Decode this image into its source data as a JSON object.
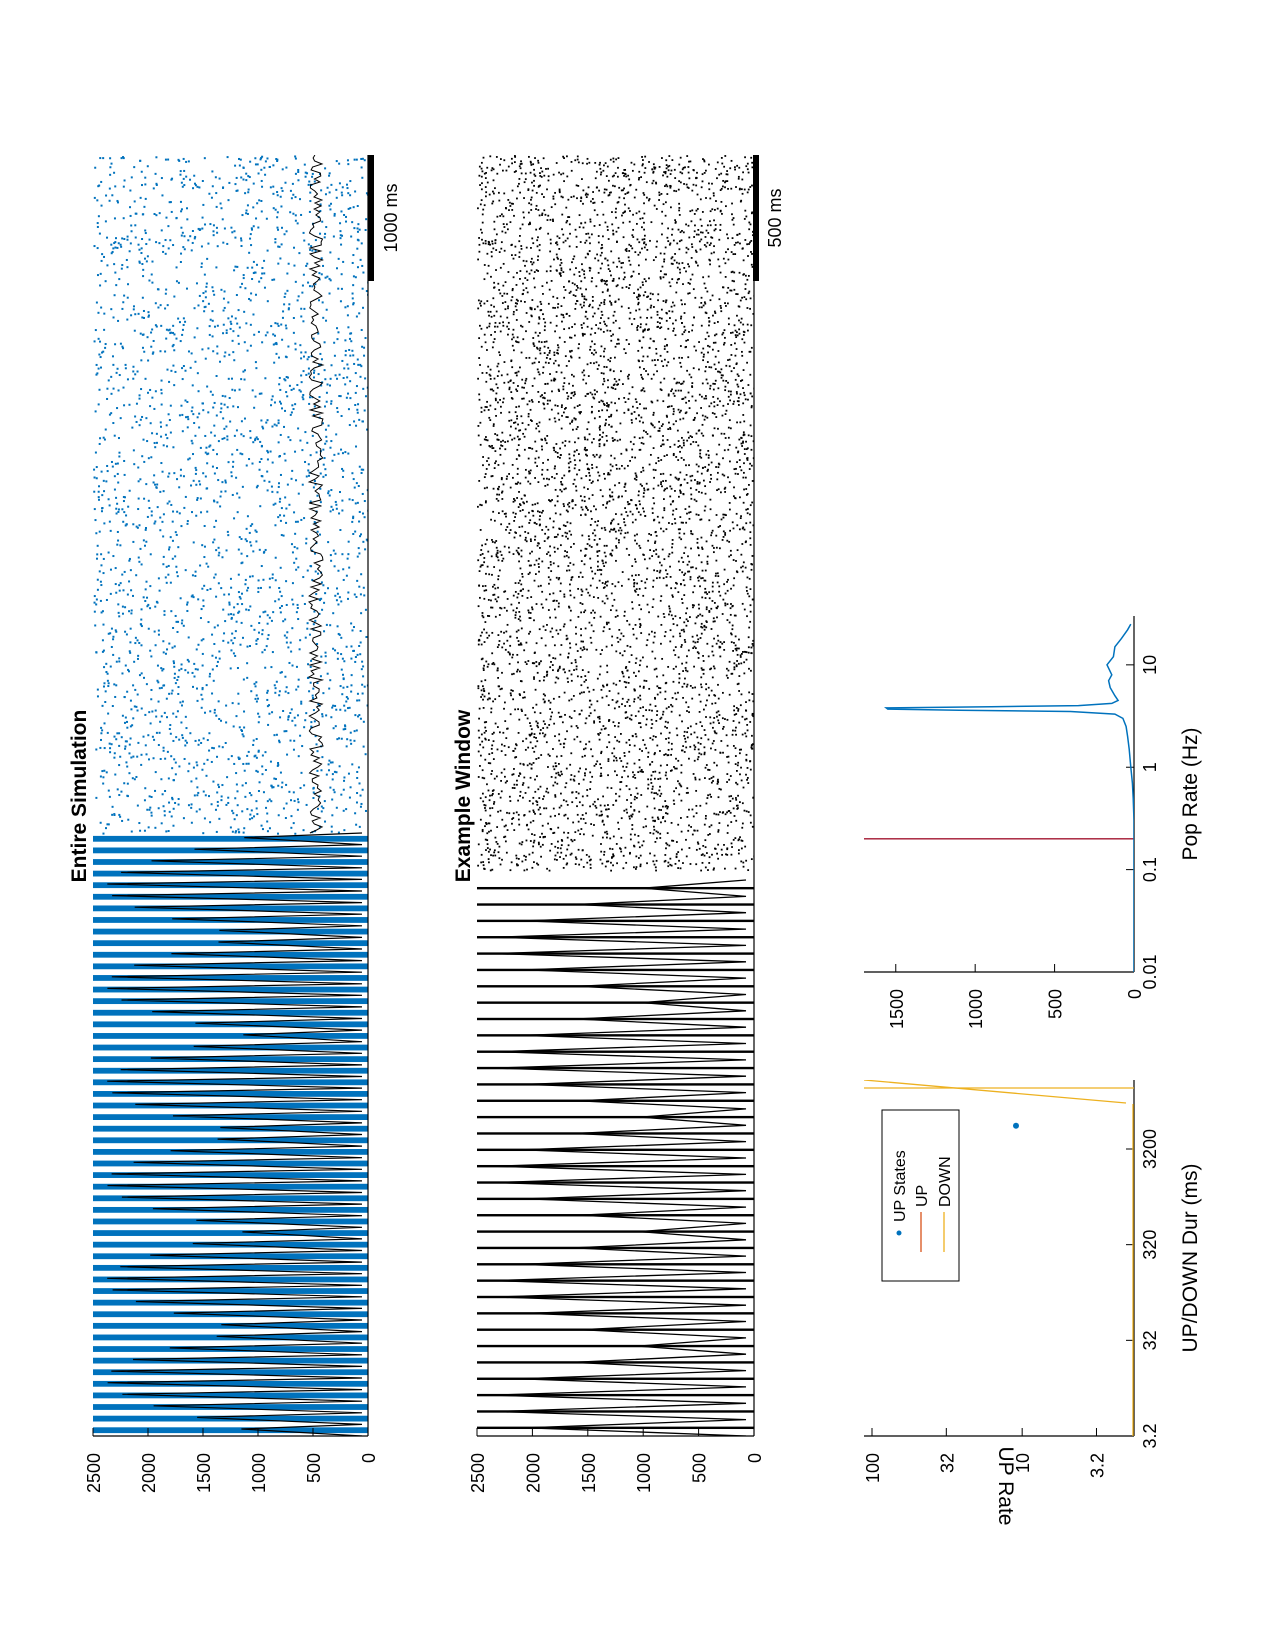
{
  "chart_data": [
    {
      "type": "scatter",
      "title": "Entire Simulation",
      "ylim": [
        0,
        2500
      ],
      "yticks": [
        "0",
        "500",
        "1000",
        "1500",
        "2000",
        "2500"
      ],
      "scalebar_label": "1000 ms",
      "colors": {
        "spikes": "#0072BD",
        "rate": "#000000"
      },
      "description_series": [
        "spike raster (neuron index)",
        "population rate trace"
      ]
    },
    {
      "type": "scatter",
      "title": "Example Window",
      "ylim": [
        0,
        2500
      ],
      "yticks": [
        "0",
        "500",
        "1000",
        "1500",
        "2000",
        "2500"
      ],
      "scalebar_label": "500 ms",
      "colors": {
        "spikes": "#000000",
        "rate": "#000000"
      }
    },
    {
      "type": "scatter",
      "title": "",
      "xlabel": "UP/DOWN Dur (ms)",
      "ylabel": "UP Rate",
      "x_scale": "log",
      "y_scale": "log",
      "xticks": [
        "3.2",
        "32",
        "320",
        "3200"
      ],
      "yticks": [
        "3.2",
        "10",
        "32",
        "100"
      ],
      "legend": {
        "position": "top-left",
        "entries": [
          {
            "label": "UP States",
            "marker": "dot",
            "color": "#0072BD"
          },
          {
            "label": "UP",
            "marker": "line",
            "color": "#D95319"
          },
          {
            "label": "DOWN",
            "marker": "line",
            "color": "#EDB120"
          }
        ]
      },
      "points": [
        {
          "x": 5600,
          "y": 11
        }
      ]
    },
    {
      "type": "line",
      "title": "",
      "xlabel": "Pop Rate (Hz)",
      "ylabel": "",
      "x_scale": "log",
      "xticks": [
        "0.01",
        "0.1",
        "1",
        "10"
      ],
      "yticks": [
        "0",
        "500",
        "1000",
        "1500"
      ],
      "ylim": [
        0,
        1700
      ],
      "threshold_x": 0.2,
      "threshold_color": "#A2142F",
      "series": [
        {
          "color": "#0072BD",
          "x": [
            0.01,
            0.1,
            0.3,
            0.5,
            0.7,
            1.0,
            1.5,
            2.0,
            2.5,
            3.0,
            3.3,
            3.5,
            3.6,
            3.7,
            3.8,
            3.9,
            4.0,
            4.2,
            4.5,
            5.0,
            6.0,
            7.0,
            8.0,
            10.0,
            12.0,
            15.0,
            18.0,
            22.0,
            25.0
          ],
          "y": [
            0,
            0,
            0,
            5,
            10,
            20,
            30,
            40,
            50,
            70,
            120,
            400,
            1100,
            1550,
            1560,
            900,
            350,
            140,
            100,
            120,
            150,
            160,
            140,
            170,
            130,
            120,
            80,
            40,
            20
          ]
        }
      ]
    }
  ]
}
